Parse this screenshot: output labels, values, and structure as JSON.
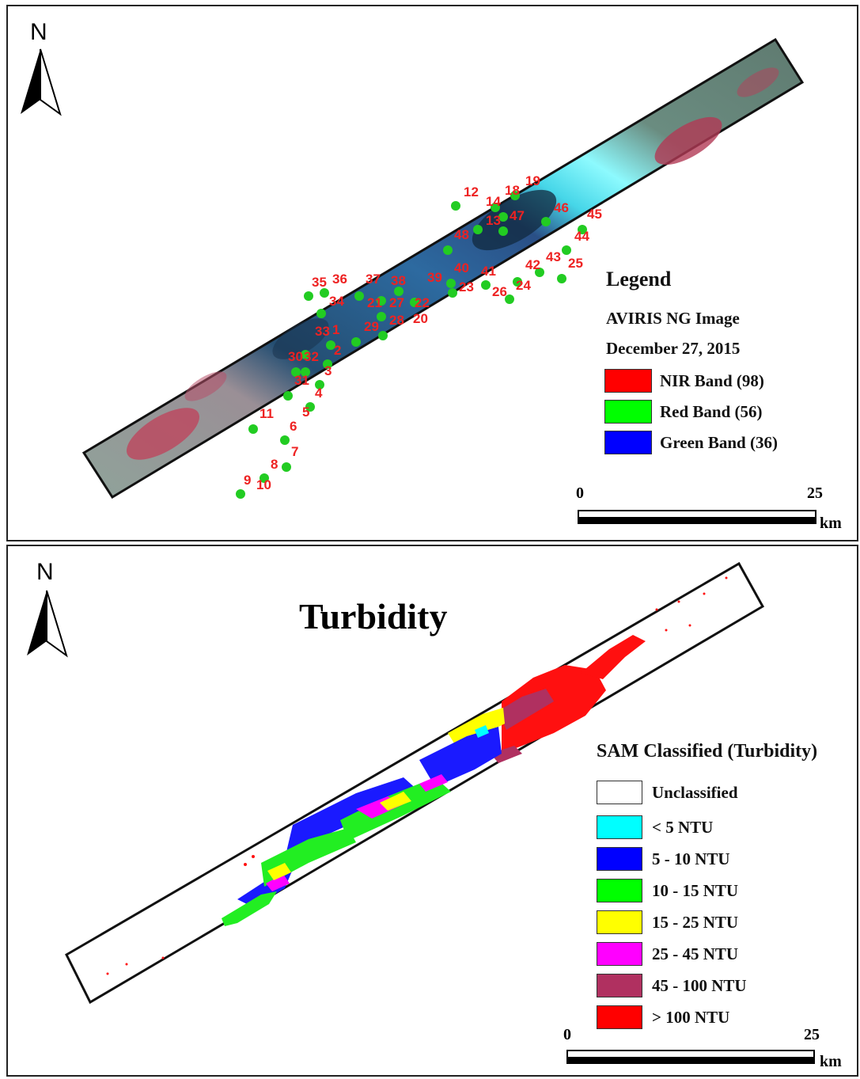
{
  "top_panel": {
    "north_label": "N",
    "legend": {
      "title": "Legend",
      "line1": "AVIRIS NG Image",
      "line2": "December 27, 2015",
      "items": [
        {
          "label": "NIR Band (98)",
          "color": "#ff0000"
        },
        {
          "label": "Red Band (56)",
          "color": "#00ff00"
        },
        {
          "label": "Green Band (36)",
          "color": "#0000ff"
        }
      ]
    },
    "scale": {
      "start": "0",
      "end": "25",
      "unit": "km"
    },
    "sample_points": [
      "1",
      "2",
      "3",
      "4",
      "5",
      "6",
      "7",
      "8",
      "9",
      "10",
      "11",
      "12",
      "13",
      "14",
      "18",
      "19",
      "20",
      "21",
      "22",
      "23",
      "24",
      "25",
      "26",
      "27",
      "28",
      "29",
      "30",
      "31",
      "32",
      "33",
      "34",
      "35",
      "36",
      "37",
      "38",
      "39",
      "40",
      "41",
      "42",
      "43",
      "44",
      "45",
      "46",
      "47",
      "48"
    ],
    "point_color": "#22cc22",
    "label_color": "#ee2222"
  },
  "bottom_panel": {
    "north_label": "N",
    "title": "Turbidity",
    "legend": {
      "title": "SAM Classified (Turbidity)",
      "items": [
        {
          "label": "Unclassified",
          "color": "#ffffff"
        },
        {
          "label": "< 5 NTU",
          "color": "#00ffff"
        },
        {
          "label": "5 - 10 NTU",
          "color": "#0000ff"
        },
        {
          "label": "10 - 15 NTU",
          "color": "#00ff00"
        },
        {
          "label": "15 - 25 NTU",
          "color": "#ffff00"
        },
        {
          "label": "25 - 45 NTU",
          "color": "#ff00ff"
        },
        {
          "label": "45 - 100 NTU",
          "color": "#b03060"
        },
        {
          "label": "> 100 NTU",
          "color": "#ff0000"
        }
      ]
    },
    "scale": {
      "start": "0",
      "end": "25",
      "unit": "km"
    }
  }
}
